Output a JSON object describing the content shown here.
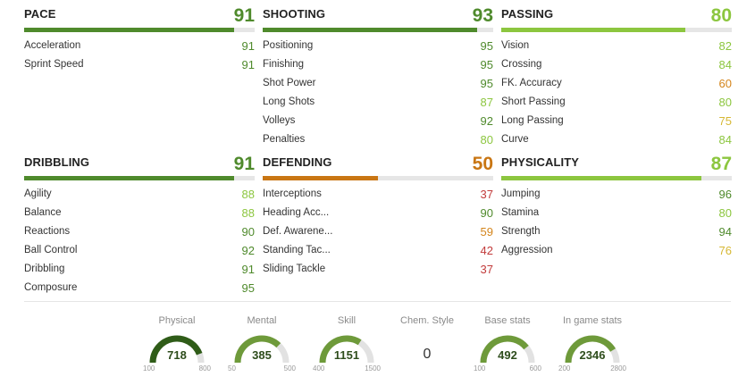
{
  "categories": [
    {
      "name": "PACE",
      "value": 91,
      "color": "#4f8a2c",
      "attributes": [
        {
          "name": "Acceleration",
          "value": 91,
          "color": "#4f8a2c"
        },
        {
          "name": "Sprint Speed",
          "value": 91,
          "color": "#4f8a2c"
        }
      ]
    },
    {
      "name": "SHOOTING",
      "value": 93,
      "color": "#4f8a2c",
      "attributes": [
        {
          "name": "Positioning",
          "value": 95,
          "color": "#4f8a2c"
        },
        {
          "name": "Finishing",
          "value": 95,
          "color": "#4f8a2c"
        },
        {
          "name": "Shot Power",
          "value": 95,
          "color": "#4f8a2c"
        },
        {
          "name": "Long Shots",
          "value": 87,
          "color": "#8cc63f"
        },
        {
          "name": "Volleys",
          "value": 92,
          "color": "#4f8a2c"
        },
        {
          "name": "Penalties",
          "value": 80,
          "color": "#8cc63f"
        }
      ]
    },
    {
      "name": "PASSING",
      "value": 80,
      "color": "#8cc63f",
      "attributes": [
        {
          "name": "Vision",
          "value": 82,
          "color": "#8cc63f"
        },
        {
          "name": "Crossing",
          "value": 84,
          "color": "#8cc63f"
        },
        {
          "name": "FK. Accuracy",
          "value": 60,
          "color": "#d4851c"
        },
        {
          "name": "Short Passing",
          "value": 80,
          "color": "#8cc63f"
        },
        {
          "name": "Long Passing",
          "value": 75,
          "color": "#d6b834"
        },
        {
          "name": "Curve",
          "value": 84,
          "color": "#8cc63f"
        }
      ]
    },
    {
      "name": "DRIBBLING",
      "value": 91,
      "color": "#4f8a2c",
      "attributes": [
        {
          "name": "Agility",
          "value": 88,
          "color": "#8cc63f"
        },
        {
          "name": "Balance",
          "value": 88,
          "color": "#8cc63f"
        },
        {
          "name": "Reactions",
          "value": 90,
          "color": "#4f8a2c"
        },
        {
          "name": "Ball Control",
          "value": 92,
          "color": "#4f8a2c"
        },
        {
          "name": "Dribbling",
          "value": 91,
          "color": "#4f8a2c"
        },
        {
          "name": "Composure",
          "value": 95,
          "color": "#4f8a2c"
        }
      ]
    },
    {
      "name": "DEFENDING",
      "value": 50,
      "color": "#c97613",
      "attributes": [
        {
          "name": "Interceptions",
          "value": 37,
          "color": "#c23b3b"
        },
        {
          "name": "Heading Acc...",
          "value": 90,
          "color": "#4f8a2c"
        },
        {
          "name": "Def. Awarene...",
          "value": 59,
          "color": "#d4851c"
        },
        {
          "name": "Standing Tac...",
          "value": 42,
          "color": "#c23b3b"
        },
        {
          "name": "Sliding Tackle",
          "value": 37,
          "color": "#c23b3b"
        }
      ]
    },
    {
      "name": "PHYSICALITY",
      "value": 87,
      "color": "#8cc63f",
      "attributes": [
        {
          "name": "Jumping",
          "value": 96,
          "color": "#4f8a2c"
        },
        {
          "name": "Stamina",
          "value": 80,
          "color": "#8cc63f"
        },
        {
          "name": "Strength",
          "value": 94,
          "color": "#4f8a2c"
        },
        {
          "name": "Aggression",
          "value": 76,
          "color": "#d6b834"
        }
      ]
    }
  ],
  "stats": [
    {
      "label": "Physical",
      "value": 718,
      "min": 100,
      "max": 800,
      "color": "#2f5c18"
    },
    {
      "label": "Mental",
      "value": 385,
      "min": 50,
      "max": 500,
      "color": "#6e9a3a"
    },
    {
      "label": "Skill",
      "value": 1151,
      "min": 400,
      "max": 1500,
      "color": "#6e9a3a"
    },
    {
      "label": "Chem. Style",
      "value": 0
    },
    {
      "label": "Base stats",
      "value": 492,
      "min": 100,
      "max": 600,
      "color": "#6e9a3a"
    },
    {
      "label": "In game stats",
      "value": 2346,
      "min": 200,
      "max": 2800,
      "color": "#6e9a3a"
    }
  ]
}
